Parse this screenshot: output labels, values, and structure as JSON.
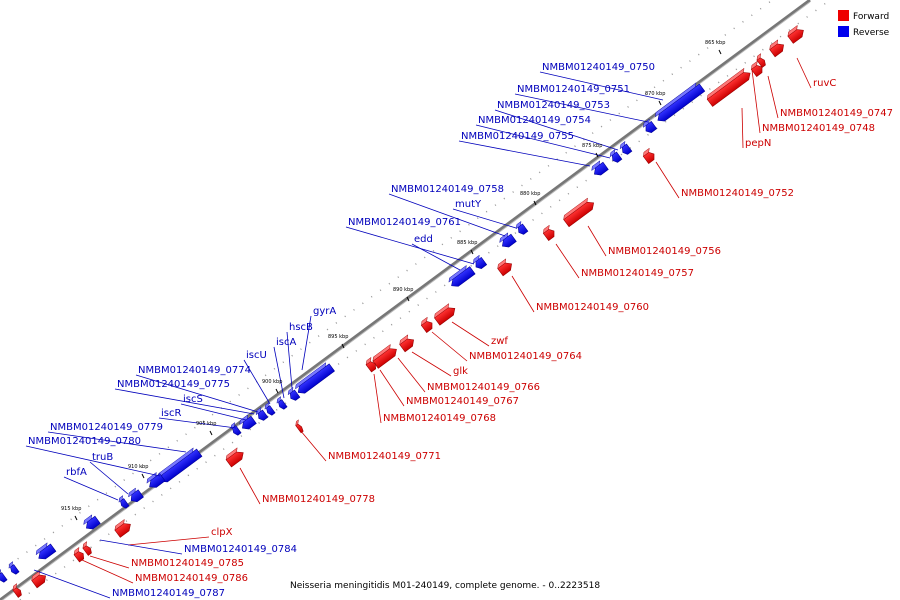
{
  "caption": "Neisseria meningitidis M01-240149, complete genome. - 0..2223518",
  "legend": {
    "forward": "Forward",
    "reverse": "Reverse",
    "forward_color": "#ee0000",
    "reverse_color": "#0000ee"
  },
  "ticks": [
    "865 kbp",
    "870 kbp",
    "875 kbp",
    "880 kbp",
    "885 kbp",
    "890 kbp",
    "895 kbp",
    "900 kbp",
    "905 kbp",
    "910 kbp",
    "915 kbp"
  ],
  "forward_labels": [
    "ruvC",
    "NMBM01240149_0747",
    "NMBM01240149_0748",
    "pepN",
    "NMBM01240149_0752",
    "NMBM01240149_0756",
    "NMBM01240149_0757",
    "NMBM01240149_0760",
    "zwf",
    "NMBM01240149_0764",
    "glk",
    "NMBM01240149_0766",
    "NMBM01240149_0767",
    "NMBM01240149_0768",
    "NMBM01240149_0771",
    "NMBM01240149_0778",
    "clpX",
    "NMBM01240149_0785",
    "NMBM01240149_0786"
  ],
  "reverse_labels": [
    "NMBM01240149_0750",
    "NMBM01240149_0751",
    "NMBM01240149_0753",
    "NMBM01240149_0754",
    "NMBM01240149_0755",
    "NMBM01240149_0758",
    "mutY",
    "NMBM01240149_0761",
    "edd",
    "gyrA",
    "hscB",
    "iscA",
    "iscU",
    "NMBM01240149_0774",
    "NMBM01240149_0775",
    "iscS",
    "iscR",
    "NMBM01240149_0779",
    "NMBM01240149_0780",
    "truB",
    "rbfA",
    "NMBM01240149_0784",
    "NMBM01240149_0787"
  ]
}
